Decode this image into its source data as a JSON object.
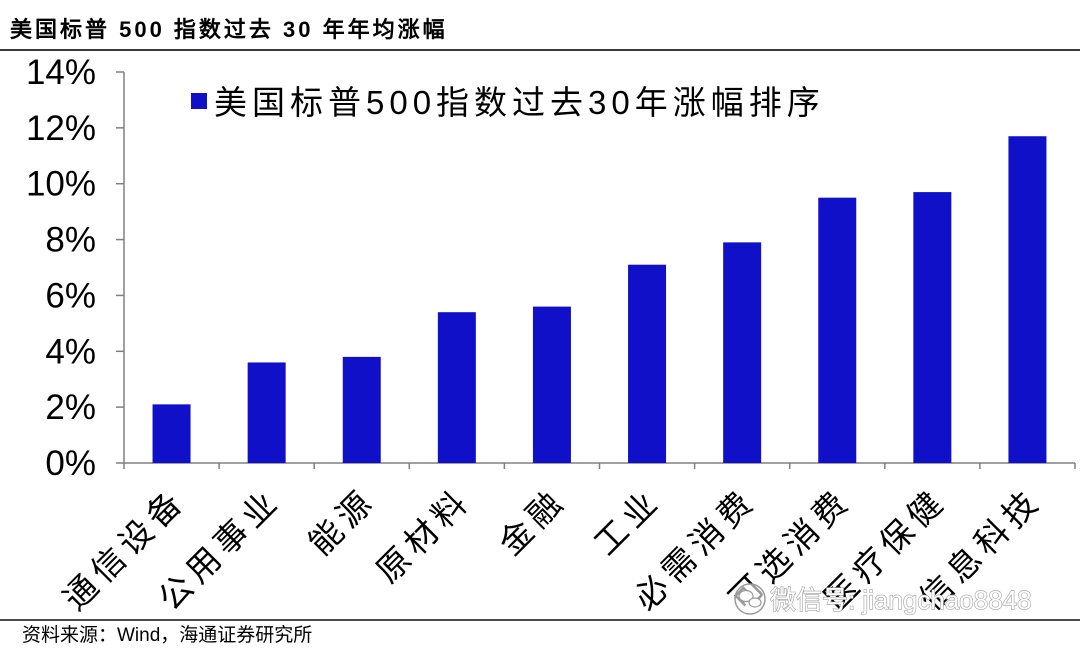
{
  "chart_data": {
    "type": "bar",
    "title": "美国标普 500 指数过去 30 年年均涨幅",
    "xlabel": "",
    "ylabel": "",
    "categories": [
      "通信设备",
      "公用事业",
      "能源",
      "原材料",
      "金融",
      "工业",
      "必需消费",
      "可选消费",
      "医疗保健",
      "信息科技"
    ],
    "series": [
      {
        "name": "美国标普500指数过去30年涨幅排序",
        "color": "#1010C8",
        "values": [
          2.1,
          3.6,
          3.8,
          5.4,
          5.6,
          7.1,
          7.9,
          9.5,
          9.7,
          11.7
        ]
      }
    ],
    "ylim": [
      0,
      14
    ],
    "yticks": [
      0,
      2,
      4,
      6,
      8,
      10,
      12,
      14
    ],
    "ytick_labels": [
      "0%",
      "2%",
      "4%",
      "6%",
      "8%",
      "10%",
      "12%",
      "14%"
    ],
    "grid": false,
    "legend_position": "top-left"
  },
  "source": "资料来源：Wind，海通证券研究所",
  "watermark": {
    "text": "微信号: jiangchao8848",
    "icon": "wechat-icon"
  },
  "colors": {
    "axis": "#808080",
    "watermark_fill": "#ffffff",
    "watermark_stroke": "#a0a0a0"
  }
}
